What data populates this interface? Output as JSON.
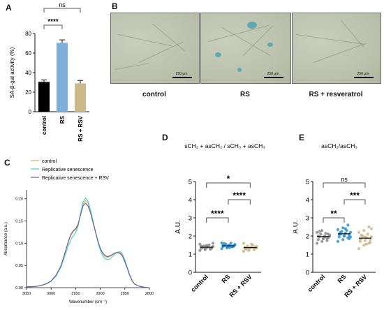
{
  "panels": {
    "a": "A",
    "b": "B",
    "c": "C",
    "d": "D",
    "e": "E"
  },
  "micrographs": {
    "scale_label": "250 µm",
    "labels": [
      "control",
      "RS",
      "RS + resveratrol"
    ],
    "stain_color": "#3aa3ad"
  },
  "chart_data": [
    {
      "panel": "A",
      "type": "bar",
      "categories": [
        "control",
        "RS",
        "RS + RSV"
      ],
      "values": [
        30.5,
        70.5,
        29
      ],
      "errors": [
        2,
        3,
        3
      ],
      "colors": [
        "#000000",
        "#7fb0dd",
        "#cbb98a"
      ],
      "ylabel": "SA-β-gal activity (%)",
      "ylim": [
        0,
        80
      ],
      "yticks": [
        0,
        20,
        40,
        60,
        80
      ],
      "significance": [
        {
          "pair": [
            "control",
            "RS"
          ],
          "label": "****"
        },
        {
          "pair": [
            "control",
            "RS + RSV"
          ],
          "label": "ns"
        }
      ]
    },
    {
      "panel": "C",
      "type": "line",
      "xlabel": "Wavenumber  (cm⁻¹)",
      "ylabel": "Absorbance (a.u.)",
      "xlim": [
        3050,
        2800
      ],
      "xticks": [
        3050,
        3000,
        2950,
        2900,
        2850,
        2800
      ],
      "ylim": [
        0,
        0.22
      ],
      "yticks": [
        0.0,
        0.05,
        0.1,
        0.15,
        0.2
      ],
      "ytick_labels": [
        "0.00",
        "0.05",
        "0.10",
        "0.15",
        "0.20"
      ],
      "series": [
        {
          "name": "control",
          "color": "#f0a646",
          "x": [
            3050,
            3040,
            3030,
            3020,
            3010,
            3000,
            2990,
            2980,
            2970,
            2965,
            2960,
            2955,
            2950,
            2945,
            2940,
            2935,
            2930,
            2925,
            2920,
            2915,
            2910,
            2905,
            2900,
            2895,
            2890,
            2885,
            2880,
            2875,
            2870,
            2865,
            2860,
            2855,
            2850,
            2845,
            2840,
            2835,
            2830,
            2820,
            2810,
            2800
          ],
          "y": [
            0.002,
            0.002,
            0.003,
            0.005,
            0.009,
            0.015,
            0.028,
            0.048,
            0.084,
            0.102,
            0.118,
            0.126,
            0.13,
            0.14,
            0.165,
            0.188,
            0.196,
            0.19,
            0.174,
            0.152,
            0.128,
            0.106,
            0.088,
            0.077,
            0.07,
            0.068,
            0.07,
            0.074,
            0.078,
            0.08,
            0.079,
            0.073,
            0.06,
            0.044,
            0.028,
            0.016,
            0.008,
            0.003,
            0.001,
            0.0
          ]
        },
        {
          "name": "Replicative senescence",
          "color": "#3fd3cf",
          "x": [
            3050,
            3040,
            3030,
            3020,
            3010,
            3000,
            2990,
            2980,
            2970,
            2965,
            2960,
            2955,
            2950,
            2945,
            2940,
            2935,
            2930,
            2925,
            2920,
            2915,
            2910,
            2905,
            2900,
            2895,
            2890,
            2885,
            2880,
            2875,
            2870,
            2865,
            2860,
            2855,
            2850,
            2845,
            2840,
            2835,
            2830,
            2820,
            2810,
            2800
          ],
          "y": [
            0.002,
            0.002,
            0.003,
            0.005,
            0.008,
            0.014,
            0.026,
            0.046,
            0.078,
            0.094,
            0.108,
            0.116,
            0.124,
            0.138,
            0.168,
            0.193,
            0.202,
            0.195,
            0.176,
            0.152,
            0.126,
            0.103,
            0.084,
            0.072,
            0.065,
            0.063,
            0.065,
            0.07,
            0.076,
            0.08,
            0.081,
            0.076,
            0.063,
            0.046,
            0.029,
            0.016,
            0.008,
            0.003,
            0.001,
            0.0
          ]
        },
        {
          "name": "Replicative senescence + RSV",
          "color": "#6b5aa6",
          "x": [
            3050,
            3040,
            3030,
            3020,
            3010,
            3000,
            2990,
            2980,
            2970,
            2965,
            2960,
            2955,
            2950,
            2945,
            2940,
            2935,
            2930,
            2925,
            2920,
            2915,
            2910,
            2905,
            2900,
            2895,
            2890,
            2885,
            2880,
            2875,
            2870,
            2865,
            2860,
            2855,
            2850,
            2845,
            2840,
            2835,
            2830,
            2820,
            2810,
            2800
          ],
          "y": [
            0.002,
            0.002,
            0.003,
            0.005,
            0.009,
            0.015,
            0.028,
            0.049,
            0.085,
            0.104,
            0.12,
            0.128,
            0.133,
            0.143,
            0.164,
            0.184,
            0.19,
            0.184,
            0.169,
            0.148,
            0.126,
            0.106,
            0.089,
            0.078,
            0.072,
            0.07,
            0.072,
            0.075,
            0.078,
            0.079,
            0.077,
            0.071,
            0.058,
            0.043,
            0.027,
            0.015,
            0.008,
            0.003,
            0.001,
            0.0
          ]
        }
      ]
    },
    {
      "panel": "D",
      "type": "scatter",
      "title": "sCH₂ + asCH₂ / sCH₃ + asCH₃",
      "ylabel": "A.U.",
      "ylim": [
        0,
        5
      ],
      "yticks": [
        0,
        1,
        2,
        3,
        4,
        5
      ],
      "categories": [
        "control",
        "RS",
        "RS + RSV"
      ],
      "colors": [
        "#8a8a8a",
        "#2b8fd6",
        "#cbb98a"
      ],
      "means": [
        1.38,
        1.46,
        1.36
      ],
      "points": [
        [
          1.2,
          1.25,
          1.3,
          1.32,
          1.35,
          1.36,
          1.38,
          1.4,
          1.42,
          1.45,
          1.5,
          1.55,
          1.3,
          1.28,
          1.44,
          1.48,
          1.33,
          1.37,
          1.41,
          1.6
        ],
        [
          1.3,
          1.35,
          1.4,
          1.42,
          1.45,
          1.46,
          1.48,
          1.5,
          1.52,
          1.55,
          1.6,
          1.62,
          1.38,
          1.44,
          1.5,
          1.47,
          1.43,
          1.58,
          1.36,
          1.53
        ],
        [
          1.15,
          1.2,
          1.25,
          1.3,
          1.33,
          1.35,
          1.37,
          1.4,
          1.42,
          1.45,
          1.5,
          1.6,
          1.28,
          1.32,
          1.38,
          1.36,
          1.41,
          1.27,
          1.55,
          1.34
        ]
      ],
      "significance": [
        {
          "pair": [
            "control",
            "RS"
          ],
          "label": "****"
        },
        {
          "pair": [
            "RS",
            "RS + RSV"
          ],
          "label": "****"
        },
        {
          "pair": [
            "control",
            "RS + RSV"
          ],
          "label": "*"
        }
      ]
    },
    {
      "panel": "E",
      "type": "scatter",
      "title": "asCH₂/asCH₃",
      "ylabel": "A.U.",
      "ylim": [
        0,
        5
      ],
      "yticks": [
        0,
        1,
        2,
        3,
        4,
        5
      ],
      "categories": [
        "control",
        "RS",
        "RS + RSV"
      ],
      "colors": [
        "#8a8a8a",
        "#2b8fd6",
        "#cbb98a"
      ],
      "means": [
        1.97,
        2.12,
        1.88
      ],
      "points": [
        [
          1.6,
          1.7,
          1.75,
          1.8,
          1.85,
          1.9,
          1.95,
          2.0,
          2.05,
          2.1,
          2.15,
          2.2,
          2.3,
          1.9,
          2.0,
          1.85,
          2.1,
          2.25,
          1.95,
          2.0
        ],
        [
          1.7,
          1.8,
          1.9,
          1.95,
          2.0,
          2.05,
          2.1,
          2.15,
          2.2,
          2.25,
          2.3,
          2.35,
          2.45,
          2.6,
          2.1,
          2.0,
          1.85,
          2.2,
          2.4,
          1.95
        ],
        [
          1.3,
          1.5,
          1.6,
          1.7,
          1.75,
          1.8,
          1.85,
          1.9,
          1.95,
          2.0,
          2.1,
          2.2,
          2.3,
          2.5,
          1.8,
          1.95,
          1.65,
          2.05,
          1.55,
          2.4
        ]
      ],
      "significance": [
        {
          "pair": [
            "control",
            "RS"
          ],
          "label": "**"
        },
        {
          "pair": [
            "RS",
            "RS + RSV"
          ],
          "label": "***"
        },
        {
          "pair": [
            "control",
            "RS + RSV"
          ],
          "label": "ns"
        }
      ]
    }
  ]
}
